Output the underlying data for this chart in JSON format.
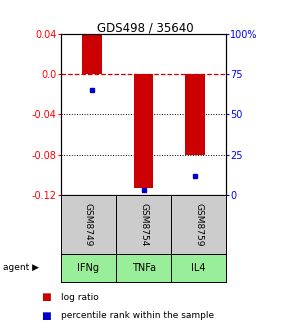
{
  "title": "GDS498 / 35640",
  "samples": [
    "GSM8749",
    "GSM8754",
    "GSM8759"
  ],
  "agents": [
    "IFNg",
    "TNFa",
    "IL4"
  ],
  "log_ratios": [
    0.04,
    -0.113,
    -0.08
  ],
  "percentile_ranks": [
    0.65,
    0.03,
    0.12
  ],
  "ylim": [
    -0.12,
    0.04
  ],
  "yticks_left": [
    0.04,
    0.0,
    -0.04,
    -0.08,
    -0.12
  ],
  "yticks_right_vals": [
    1.0,
    0.75,
    0.5,
    0.25,
    0.0
  ],
  "yticks_right_labels": [
    "100%",
    "75",
    "50",
    "25",
    "0"
  ],
  "bar_color": "#cc0000",
  "dot_color": "#0000cc",
  "bar_width": 0.38,
  "zero_line_color": "#cc0000",
  "sample_box_color": "#cccccc",
  "agent_box_color": "#99ee99"
}
